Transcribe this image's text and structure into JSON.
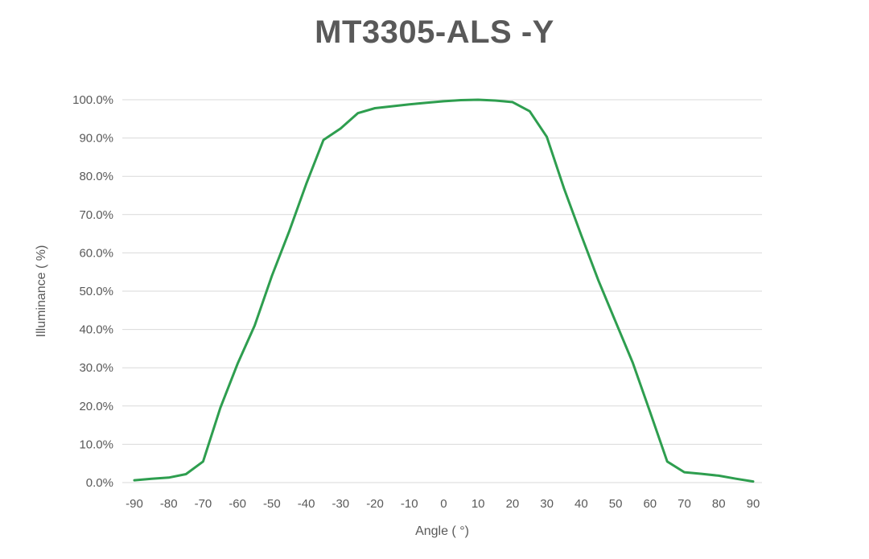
{
  "header": {
    "title": "MT3305-ALS -Y"
  },
  "chart_data": {
    "type": "line",
    "title": "MT3305-ALS -Y",
    "xlabel": "Angle ( °)",
    "ylabel": "Illuminance ( %)",
    "xlim": [
      -90,
      90
    ],
    "ylim": [
      0,
      100
    ],
    "grid": "horizontal",
    "legend": "none",
    "x_tick_labels": [
      "-90",
      "-80",
      "-70",
      "-60",
      "-50",
      "-40",
      "-30",
      "-20",
      "-10",
      "0",
      "10",
      "20",
      "30",
      "40",
      "50",
      "60",
      "70",
      "80",
      "90"
    ],
    "x_tick_values": [
      -90,
      -80,
      -70,
      -60,
      -50,
      -40,
      -30,
      -20,
      -10,
      0,
      10,
      20,
      30,
      40,
      50,
      60,
      70,
      80,
      90
    ],
    "y_tick_labels": [
      "0.0%",
      "10.0%",
      "20.0%",
      "30.0%",
      "40.0%",
      "50.0%",
      "60.0%",
      "70.0%",
      "80.0%",
      "90.0%",
      "100.0%"
    ],
    "y_tick_values": [
      0,
      10,
      20,
      30,
      40,
      50,
      60,
      70,
      80,
      90,
      100
    ],
    "series": [
      {
        "name": "Illuminance",
        "color": "#2e9e4f",
        "x": [
          -90,
          -85,
          -80,
          -75,
          -70,
          -65,
          -60,
          -55,
          -50,
          -45,
          -40,
          -35,
          -30,
          -25,
          -20,
          -15,
          -10,
          -5,
          0,
          5,
          10,
          15,
          20,
          25,
          30,
          35,
          40,
          45,
          50,
          55,
          60,
          65,
          70,
          75,
          80,
          85,
          90
        ],
        "values": [
          0.6,
          1.0,
          1.3,
          2.2,
          5.5,
          19.5,
          31.0,
          41.0,
          54.0,
          65.5,
          78.0,
          89.5,
          92.5,
          96.5,
          97.8,
          98.3,
          98.8,
          99.2,
          99.6,
          99.9,
          100.0,
          99.8,
          99.4,
          97.0,
          90.3,
          76.8,
          64.6,
          52.8,
          42.0,
          31.3,
          18.5,
          5.5,
          2.7,
          2.3,
          1.8,
          1.0,
          0.3
        ]
      }
    ]
  },
  "style": {
    "line_color": "#2e9e4f",
    "grid_color": "#d9d9d9",
    "text_color": "#595959",
    "title_color": "#595959",
    "background": "#ffffff"
  }
}
